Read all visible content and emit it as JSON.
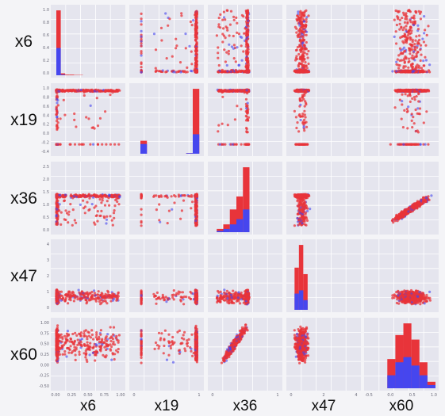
{
  "chart_data": {
    "type": "scatter_matrix",
    "variables": [
      "x6",
      "x19",
      "x36",
      "x47",
      "x60"
    ],
    "colors": {
      "class_a": "#e8343a",
      "class_b": "#4646ee"
    },
    "grid": true,
    "axis_ticks": {
      "x6_y": [
        "1.0",
        "0.8",
        "0.6",
        "0.4",
        "0.2",
        "0.0"
      ],
      "x6_x": [
        "0.00",
        "0.25",
        "0.50",
        "0.75",
        "1.00"
      ],
      "x19_y": [
        "1.0",
        "0.8",
        "0.6",
        "0.4",
        "0.2",
        "0.0",
        "-0.2",
        "-0.4"
      ],
      "x19_x": [
        "0",
        "1"
      ],
      "x36_y": [
        "2.5",
        "2.0",
        "1.5",
        "1.0",
        "0.5",
        "0.0"
      ],
      "x36_x": [
        "0",
        "1"
      ],
      "x47_y": [
        "4",
        "3",
        "2",
        "1",
        "0"
      ],
      "x47_x": [
        "0",
        "2",
        "4"
      ],
      "x60_y": [
        "1.00",
        "0.75",
        "0.50",
        "0.25",
        "0.00",
        "-0.25",
        "-0.50"
      ],
      "x60_x": [
        "-0.5",
        "0.0",
        "0.5",
        "1.0"
      ]
    },
    "axis_ranges": {
      "x6": [
        -0.05,
        1.05
      ],
      "x19": [
        -0.5,
        1.1
      ],
      "x36": [
        -0.3,
        2.9
      ],
      "x47": [
        -0.4,
        4.4
      ],
      "x60": [
        -0.62,
        1.12
      ]
    },
    "diagonal_histograms": {
      "x6": {
        "bins": [
          0.0,
          0.07,
          0.14,
          0.21,
          0.28,
          0.35,
          0.42,
          0.49,
          0.56,
          0.63,
          0.7,
          0.77,
          0.84,
          0.91,
          0.98
        ],
        "class_a": [
          1.0,
          0.03,
          0.01,
          0.01,
          0.005,
          0.005,
          0,
          0,
          0,
          0,
          0,
          0,
          0,
          0
        ],
        "class_b": [
          0.42,
          0.01,
          0,
          0,
          0,
          0,
          0,
          0,
          0,
          0,
          0,
          0,
          0,
          0
        ]
      },
      "x19": {
        "bins": [
          -0.3,
          -0.15,
          0.0,
          0.15,
          0.3,
          0.45,
          0.6,
          0.75,
          0.9,
          1.05
        ],
        "class_a": [
          0.2,
          0,
          0,
          0,
          0,
          0,
          0,
          0.01,
          1.0
        ],
        "class_b": [
          0.15,
          0,
          0,
          0,
          0,
          0,
          0,
          0.01,
          0.3
        ]
      },
      "x36": {
        "bins": [
          0.0,
          0.3,
          0.6,
          0.9,
          1.2,
          1.5
        ],
        "class_a": [
          0.05,
          0.12,
          0.35,
          0.55,
          1.0
        ],
        "class_b": [
          0.02,
          0.05,
          0.12,
          0.2,
          0.35
        ]
      },
      "x47": {
        "bins": [
          0.0,
          0.3,
          0.6,
          0.9
        ],
        "class_a": [
          0.65,
          1.0,
          0.55
        ],
        "class_b": [
          0.25,
          0.3,
          0.15
        ]
      },
      "x60": {
        "bins": [
          -0.1,
          0.1,
          0.3,
          0.5,
          0.7,
          0.9,
          1.1
        ],
        "class_a": [
          0.45,
          0.82,
          1.0,
          0.75,
          0.4,
          0.1
        ],
        "class_b": [
          0.2,
          0.4,
          0.48,
          0.35,
          0.2,
          0.05
        ]
      }
    }
  }
}
